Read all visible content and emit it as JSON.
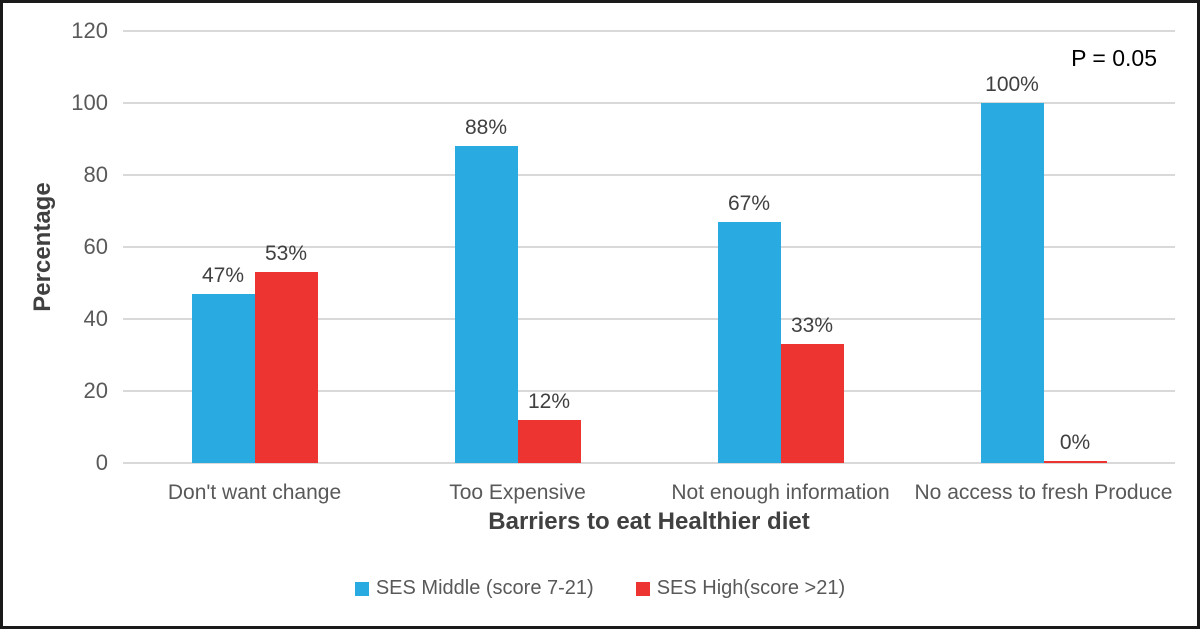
{
  "chart_data": {
    "type": "bar",
    "title": "",
    "categories": [
      "Don't want change",
      "Too Expensive",
      "Not enough information",
      "No access to fresh Produce"
    ],
    "series": [
      {
        "name": "SES Middle (score 7-21)",
        "color": "#29ABE2",
        "values": [
          47,
          88,
          67,
          100
        ]
      },
      {
        "name": "SES High(score >21)",
        "color": "#EE3431",
        "values": [
          53,
          12,
          33,
          0
        ]
      }
    ],
    "value_suffix": "%",
    "xlabel": "Barriers to eat Healthier diet",
    "ylabel": "Percentage",
    "ylim": [
      0,
      120
    ],
    "yticks": [
      0,
      20,
      40,
      60,
      80,
      100,
      120
    ],
    "grid": true,
    "legend_position": "bottom",
    "annotation": "P = 0.05"
  },
  "style": {
    "gridline_color": "#d9d9d9",
    "tick_text_color": "#595959",
    "label_text_color": "#404040",
    "frame_border_color": "#1a1a1a"
  }
}
